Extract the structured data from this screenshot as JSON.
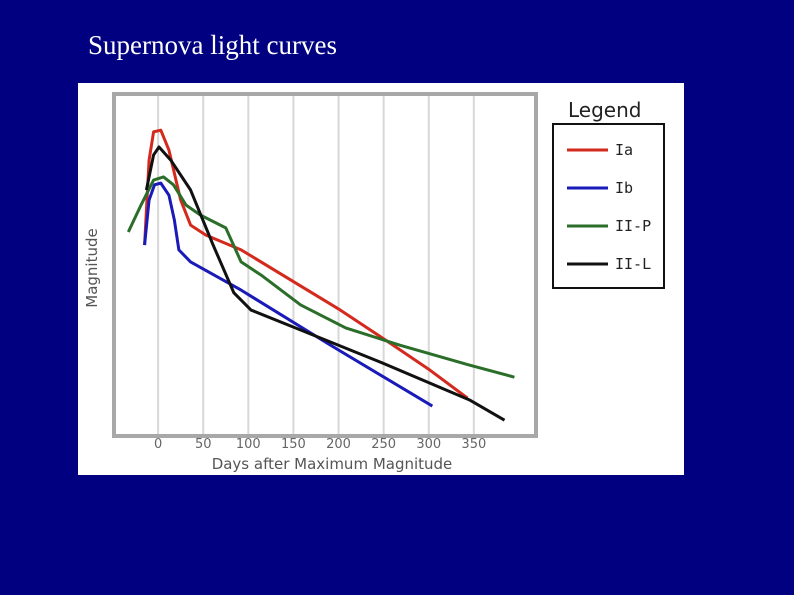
{
  "chart_data": {
    "type": "line",
    "title": "Supernova light curves",
    "x_label": "Days after Maximum Magnitude",
    "y_label": "Magnitude",
    "legend_title": "Legend",
    "legend": "right",
    "grid": true,
    "xlim": [
      -50,
      420
    ],
    "xticks": [
      0,
      50,
      100,
      150,
      200,
      250,
      300,
      350
    ],
    "ylim": [
      0,
      100
    ],
    "series": [
      {
        "name": "Ia",
        "color": "#d42a1e",
        "x": [
          -15,
          -10,
          -5,
          3,
          12,
          25,
          36,
          53,
          92,
          202,
          252,
          301,
          343
        ],
        "values": [
          55.8,
          80.5,
          88.7,
          89.2,
          83.4,
          68.9,
          61.6,
          58.7,
          54.4,
          36.9,
          28.2,
          19.5,
          11.3
        ]
      },
      {
        "name": "Ib",
        "color": "#1a1ab8",
        "x": [
          -15,
          -10,
          -4,
          3,
          12,
          18,
          23,
          36,
          92,
          191,
          304
        ],
        "values": [
          55.8,
          68.9,
          73.3,
          73.8,
          70.3,
          63.1,
          54.4,
          50.9,
          42.7,
          26.7,
          9.0
        ]
      },
      {
        "name": "II-P",
        "color": "#2a6e2a",
        "x": [
          -33,
          -19,
          -5,
          6,
          17,
          31,
          47,
          75,
          92,
          114,
          158,
          208,
          268,
          345,
          395
        ],
        "values": [
          59.6,
          67.4,
          74.7,
          75.6,
          73.3,
          67.4,
          64.5,
          60.8,
          50.9,
          47.1,
          38.4,
          31.7,
          26.7,
          20.9,
          17.4
        ]
      },
      {
        "name": "II-L",
        "color": "#111111",
        "x": [
          -13,
          -5,
          1,
          14,
          36,
          61,
          84,
          103,
          158,
          246,
          345,
          384
        ],
        "values": [
          71.8,
          82.0,
          84.3,
          80.5,
          71.8,
          55.8,
          41.9,
          36.9,
          31.1,
          21.8,
          10.8,
          4.9
        ]
      }
    ]
  }
}
